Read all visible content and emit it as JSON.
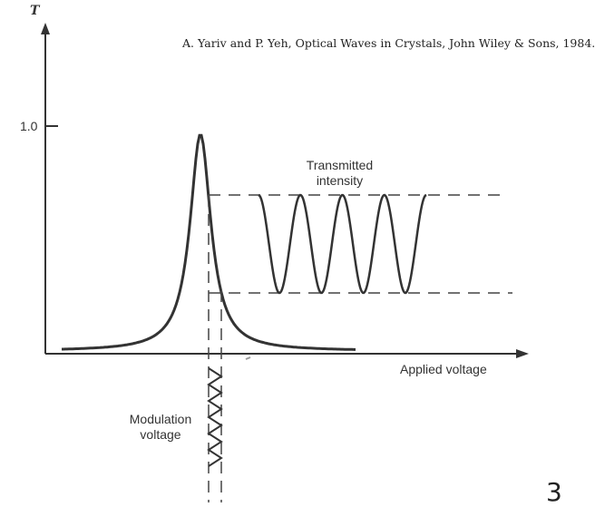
{
  "citation": "A. Yariv and P. Yeh, Optical Waves in Crystals, John Wiley & Sons, 1984.",
  "y_axis_label": "T",
  "y_tick_label": "1.0",
  "x_axis_label": "Applied voltage",
  "transmitted_label": {
    "line1": "Transmitted",
    "line2": "intensity"
  },
  "modulation_label": {
    "line1": "Modulation",
    "line2": "voltage"
  },
  "page_number": "3",
  "colors": {
    "ink": "#333333",
    "background": "#ffffff"
  }
}
